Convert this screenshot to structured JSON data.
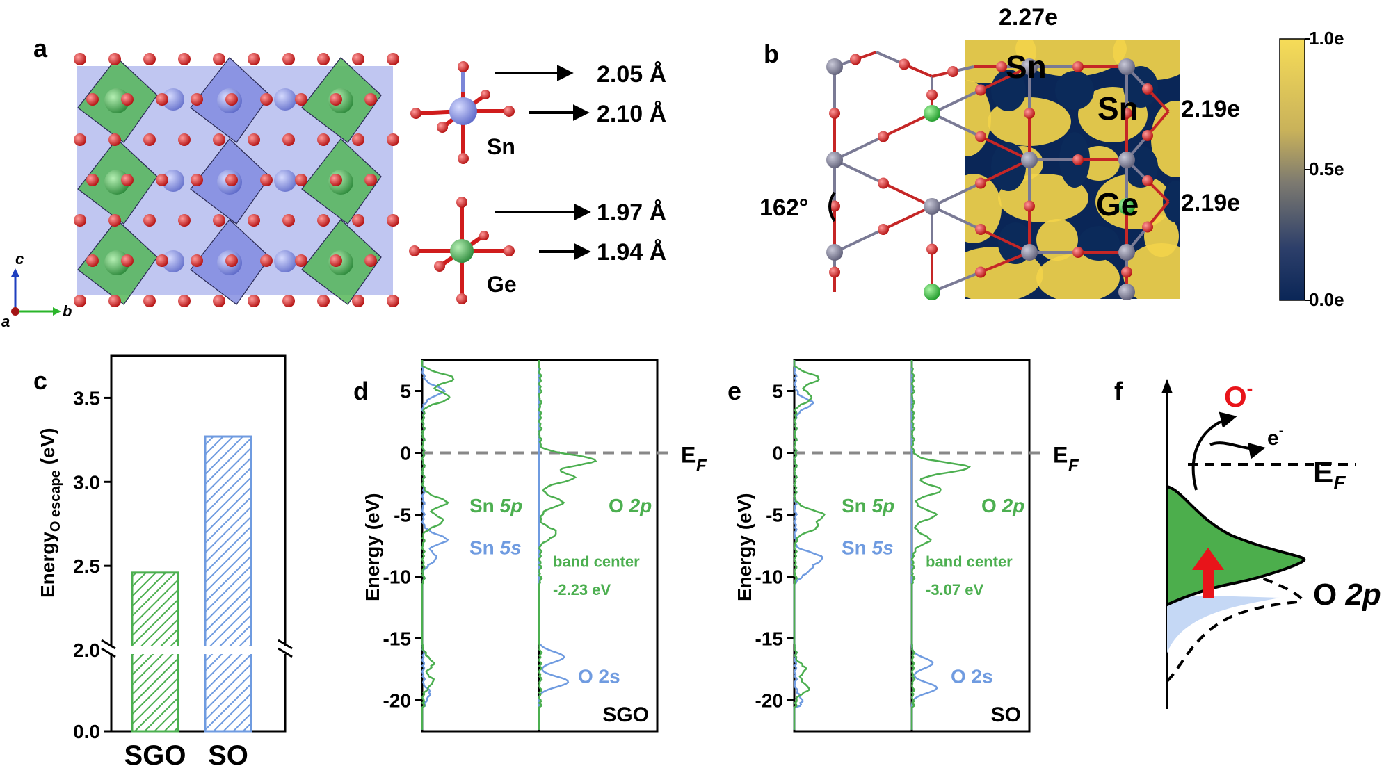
{
  "colors": {
    "sn": "#7b86d8",
    "ge": "#3aa54a",
    "o": "#d01c1c",
    "green": "#4caf50",
    "blue": "#6f9be0",
    "dark_blue": "#0b2a5a",
    "yellow": "#f2d24a",
    "red_arrow": "#e8141a"
  },
  "panel_labels": {
    "a": "a",
    "b": "b",
    "c": "c",
    "d": "d",
    "e": "e",
    "f": "f"
  },
  "panel_a": {
    "axes": {
      "c": "c",
      "a": "a",
      "b": "b"
    },
    "bonds": [
      {
        "value": "2.05 Å"
      },
      {
        "value": "2.10 Å"
      },
      {
        "value": "1.97 Å"
      },
      {
        "value": "1.94 Å"
      }
    ],
    "sn_label": "Sn",
    "ge_label": "Ge"
  },
  "panel_b": {
    "charges": {
      "top": "2.27e",
      "right_sn": "2.19e",
      "right_ge": "2.19e"
    },
    "atoms": {
      "sn1": "Sn",
      "sn2": "Sn",
      "ge": "Ge"
    },
    "angle": "162°",
    "colorbar": {
      "max": "1.0e",
      "mid": "0.5e",
      "min": "0.0e"
    }
  },
  "panel_c": {
    "ylabel_main": "Energy",
    "ylabel_sub": "O escape",
    "ylabel_unit": " (eV)"
  },
  "chart_data": [
    {
      "type": "bar",
      "categories": [
        "SGO",
        "SO"
      ],
      "values": [
        2.46,
        3.27
      ],
      "xlabel": "",
      "ylabel": "Energy O escape (eV)",
      "ylim": [
        0,
        3.75
      ],
      "axis_break": [
        0.0,
        2.0
      ],
      "yticks": [
        "0.0",
        "2.0",
        "2.5",
        "3.0",
        "3.5"
      ],
      "colors": [
        "#4caf50",
        "#6f9be0"
      ]
    },
    {
      "type": "line",
      "title": "SGO",
      "ylabel": "Energy (eV)",
      "ylim": [
        -22.5,
        7.5
      ],
      "yticks": [
        "5",
        "0",
        "-5",
        "-10",
        "-15",
        "-20"
      ],
      "fermi_label": "E",
      "fermi_sub": "F",
      "series": [
        {
          "name": "Sn 5p",
          "peaks": [
            [
              6.0,
              0.9
            ],
            [
              4.5,
              0.8
            ],
            [
              -4.0,
              0.7
            ],
            [
              -5.5,
              0.6
            ],
            [
              -17.0,
              0.3
            ],
            [
              -18.5,
              0.3
            ]
          ]
        },
        {
          "name": "Sn 5s",
          "peaks": [
            [
              5.0,
              0.6
            ],
            [
              -7.0,
              0.7
            ],
            [
              -8.5,
              0.4
            ],
            [
              -19.5,
              0.2
            ]
          ]
        },
        {
          "name": "O 2p",
          "peaks": [
            [
              -0.6,
              1.0
            ],
            [
              -2.0,
              0.6
            ],
            [
              -4.0,
              0.4
            ],
            [
              -6.5,
              0.3
            ]
          ]
        },
        {
          "name": "O 2s",
          "peaks": [
            [
              -16.5,
              0.6
            ],
            [
              -18.5,
              0.7
            ]
          ]
        }
      ],
      "annotations": {
        "band_center": "band center",
        "band_center_value": "-2.23 eV"
      }
    },
    {
      "type": "line",
      "title": "SO",
      "ylabel": "Energy (eV)",
      "ylim": [
        -22.5,
        7.5
      ],
      "yticks": [
        "5",
        "0",
        "-5",
        "-10",
        "-15",
        "-20"
      ],
      "fermi_label": "E",
      "fermi_sub": "F",
      "series": [
        {
          "name": "Sn 5p",
          "peaks": [
            [
              6.0,
              0.7
            ],
            [
              4.5,
              0.5
            ],
            [
              -5.0,
              0.8
            ],
            [
              -6.0,
              0.6
            ],
            [
              -17.5,
              0.3
            ],
            [
              -19.0,
              0.4
            ]
          ]
        },
        {
          "name": "Sn 5s",
          "peaks": [
            [
              4.0,
              0.5
            ],
            [
              -8.5,
              0.8
            ],
            [
              -9.5,
              0.4
            ],
            [
              -20.0,
              0.2
            ]
          ]
        },
        {
          "name": "O 2p",
          "peaks": [
            [
              -1.2,
              1.0
            ],
            [
              -3.0,
              0.5
            ],
            [
              -5.0,
              0.4
            ],
            [
              -7.0,
              0.3
            ]
          ]
        },
        {
          "name": "O 2s",
          "peaks": [
            [
              -17.0,
              0.5
            ],
            [
              -19.0,
              0.6
            ]
          ]
        }
      ],
      "annotations": {
        "band_center": "band center",
        "band_center_value": "-3.07 eV"
      }
    }
  ],
  "panel_f": {
    "o_minus": "O",
    "o_minus_sup": "-",
    "electron": "e",
    "electron_sup": "-",
    "fermi": "E",
    "fermi_sub": "F",
    "o2p": "O ",
    "o2p_italic": "2p"
  }
}
